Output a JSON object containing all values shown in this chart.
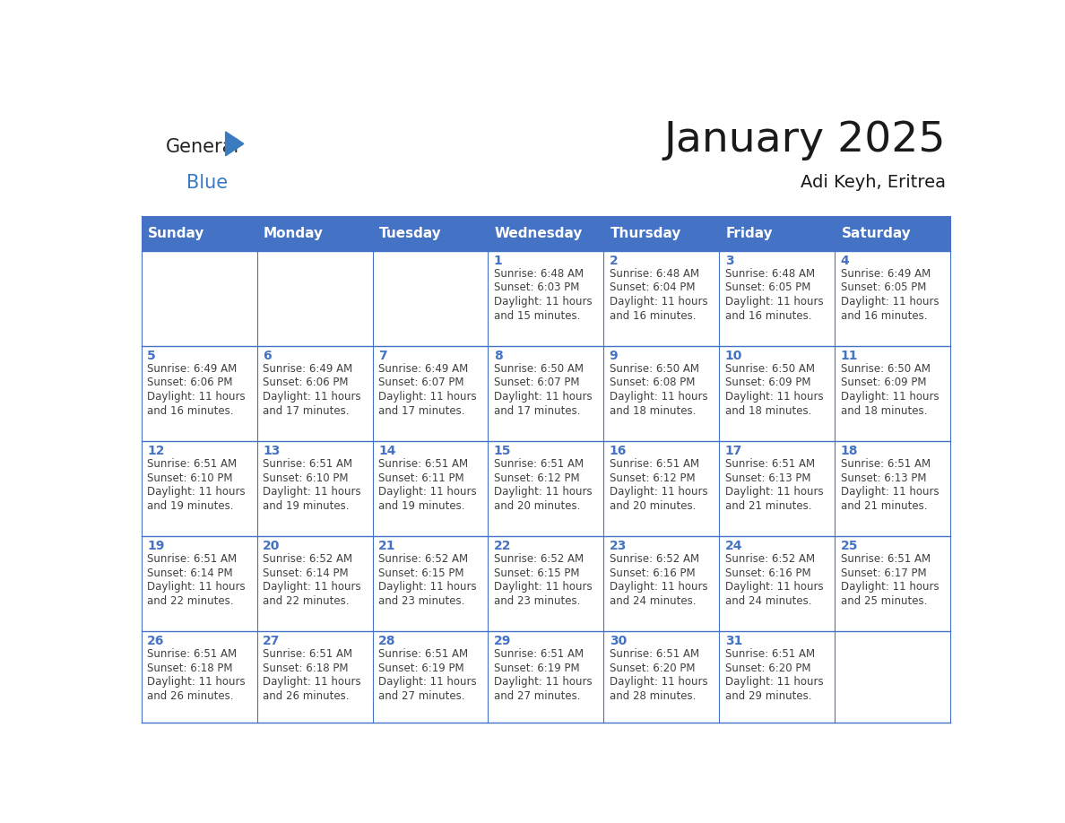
{
  "title": "January 2025",
  "subtitle": "Adi Keyh, Eritrea",
  "days_of_week": [
    "Sunday",
    "Monday",
    "Tuesday",
    "Wednesday",
    "Thursday",
    "Friday",
    "Saturday"
  ],
  "header_bg": "#4472C4",
  "header_text": "#FFFFFF",
  "grid_line_color": "#4472C4",
  "day_number_color": "#4472C4",
  "text_color": "#404040",
  "calendar_data": [
    [
      null,
      null,
      null,
      {
        "day": "1",
        "sunrise": "Sunrise: 6:48 AM",
        "sunset": "Sunset: 6:03 PM",
        "daylight": "Daylight: 11 hours",
        "daylight2": "and 15 minutes."
      },
      {
        "day": "2",
        "sunrise": "Sunrise: 6:48 AM",
        "sunset": "Sunset: 6:04 PM",
        "daylight": "Daylight: 11 hours",
        "daylight2": "and 16 minutes."
      },
      {
        "day": "3",
        "sunrise": "Sunrise: 6:48 AM",
        "sunset": "Sunset: 6:05 PM",
        "daylight": "Daylight: 11 hours",
        "daylight2": "and 16 minutes."
      },
      {
        "day": "4",
        "sunrise": "Sunrise: 6:49 AM",
        "sunset": "Sunset: 6:05 PM",
        "daylight": "Daylight: 11 hours",
        "daylight2": "and 16 minutes."
      }
    ],
    [
      {
        "day": "5",
        "sunrise": "Sunrise: 6:49 AM",
        "sunset": "Sunset: 6:06 PM",
        "daylight": "Daylight: 11 hours",
        "daylight2": "and 16 minutes."
      },
      {
        "day": "6",
        "sunrise": "Sunrise: 6:49 AM",
        "sunset": "Sunset: 6:06 PM",
        "daylight": "Daylight: 11 hours",
        "daylight2": "and 17 minutes."
      },
      {
        "day": "7",
        "sunrise": "Sunrise: 6:49 AM",
        "sunset": "Sunset: 6:07 PM",
        "daylight": "Daylight: 11 hours",
        "daylight2": "and 17 minutes."
      },
      {
        "day": "8",
        "sunrise": "Sunrise: 6:50 AM",
        "sunset": "Sunset: 6:07 PM",
        "daylight": "Daylight: 11 hours",
        "daylight2": "and 17 minutes."
      },
      {
        "day": "9",
        "sunrise": "Sunrise: 6:50 AM",
        "sunset": "Sunset: 6:08 PM",
        "daylight": "Daylight: 11 hours",
        "daylight2": "and 18 minutes."
      },
      {
        "day": "10",
        "sunrise": "Sunrise: 6:50 AM",
        "sunset": "Sunset: 6:09 PM",
        "daylight": "Daylight: 11 hours",
        "daylight2": "and 18 minutes."
      },
      {
        "day": "11",
        "sunrise": "Sunrise: 6:50 AM",
        "sunset": "Sunset: 6:09 PM",
        "daylight": "Daylight: 11 hours",
        "daylight2": "and 18 minutes."
      }
    ],
    [
      {
        "day": "12",
        "sunrise": "Sunrise: 6:51 AM",
        "sunset": "Sunset: 6:10 PM",
        "daylight": "Daylight: 11 hours",
        "daylight2": "and 19 minutes."
      },
      {
        "day": "13",
        "sunrise": "Sunrise: 6:51 AM",
        "sunset": "Sunset: 6:10 PM",
        "daylight": "Daylight: 11 hours",
        "daylight2": "and 19 minutes."
      },
      {
        "day": "14",
        "sunrise": "Sunrise: 6:51 AM",
        "sunset": "Sunset: 6:11 PM",
        "daylight": "Daylight: 11 hours",
        "daylight2": "and 19 minutes."
      },
      {
        "day": "15",
        "sunrise": "Sunrise: 6:51 AM",
        "sunset": "Sunset: 6:12 PM",
        "daylight": "Daylight: 11 hours",
        "daylight2": "and 20 minutes."
      },
      {
        "day": "16",
        "sunrise": "Sunrise: 6:51 AM",
        "sunset": "Sunset: 6:12 PM",
        "daylight": "Daylight: 11 hours",
        "daylight2": "and 20 minutes."
      },
      {
        "day": "17",
        "sunrise": "Sunrise: 6:51 AM",
        "sunset": "Sunset: 6:13 PM",
        "daylight": "Daylight: 11 hours",
        "daylight2": "and 21 minutes."
      },
      {
        "day": "18",
        "sunrise": "Sunrise: 6:51 AM",
        "sunset": "Sunset: 6:13 PM",
        "daylight": "Daylight: 11 hours",
        "daylight2": "and 21 minutes."
      }
    ],
    [
      {
        "day": "19",
        "sunrise": "Sunrise: 6:51 AM",
        "sunset": "Sunset: 6:14 PM",
        "daylight": "Daylight: 11 hours",
        "daylight2": "and 22 minutes."
      },
      {
        "day": "20",
        "sunrise": "Sunrise: 6:52 AM",
        "sunset": "Sunset: 6:14 PM",
        "daylight": "Daylight: 11 hours",
        "daylight2": "and 22 minutes."
      },
      {
        "day": "21",
        "sunrise": "Sunrise: 6:52 AM",
        "sunset": "Sunset: 6:15 PM",
        "daylight": "Daylight: 11 hours",
        "daylight2": "and 23 minutes."
      },
      {
        "day": "22",
        "sunrise": "Sunrise: 6:52 AM",
        "sunset": "Sunset: 6:15 PM",
        "daylight": "Daylight: 11 hours",
        "daylight2": "and 23 minutes."
      },
      {
        "day": "23",
        "sunrise": "Sunrise: 6:52 AM",
        "sunset": "Sunset: 6:16 PM",
        "daylight": "Daylight: 11 hours",
        "daylight2": "and 24 minutes."
      },
      {
        "day": "24",
        "sunrise": "Sunrise: 6:52 AM",
        "sunset": "Sunset: 6:16 PM",
        "daylight": "Daylight: 11 hours",
        "daylight2": "and 24 minutes."
      },
      {
        "day": "25",
        "sunrise": "Sunrise: 6:51 AM",
        "sunset": "Sunset: 6:17 PM",
        "daylight": "Daylight: 11 hours",
        "daylight2": "and 25 minutes."
      }
    ],
    [
      {
        "day": "26",
        "sunrise": "Sunrise: 6:51 AM",
        "sunset": "Sunset: 6:18 PM",
        "daylight": "Daylight: 11 hours",
        "daylight2": "and 26 minutes."
      },
      {
        "day": "27",
        "sunrise": "Sunrise: 6:51 AM",
        "sunset": "Sunset: 6:18 PM",
        "daylight": "Daylight: 11 hours",
        "daylight2": "and 26 minutes."
      },
      {
        "day": "28",
        "sunrise": "Sunrise: 6:51 AM",
        "sunset": "Sunset: 6:19 PM",
        "daylight": "Daylight: 11 hours",
        "daylight2": "and 27 minutes."
      },
      {
        "day": "29",
        "sunrise": "Sunrise: 6:51 AM",
        "sunset": "Sunset: 6:19 PM",
        "daylight": "Daylight: 11 hours",
        "daylight2": "and 27 minutes."
      },
      {
        "day": "30",
        "sunrise": "Sunrise: 6:51 AM",
        "sunset": "Sunset: 6:20 PM",
        "daylight": "Daylight: 11 hours",
        "daylight2": "and 28 minutes."
      },
      {
        "day": "31",
        "sunrise": "Sunrise: 6:51 AM",
        "sunset": "Sunset: 6:20 PM",
        "daylight": "Daylight: 11 hours",
        "daylight2": "and 29 minutes."
      },
      null
    ]
  ]
}
